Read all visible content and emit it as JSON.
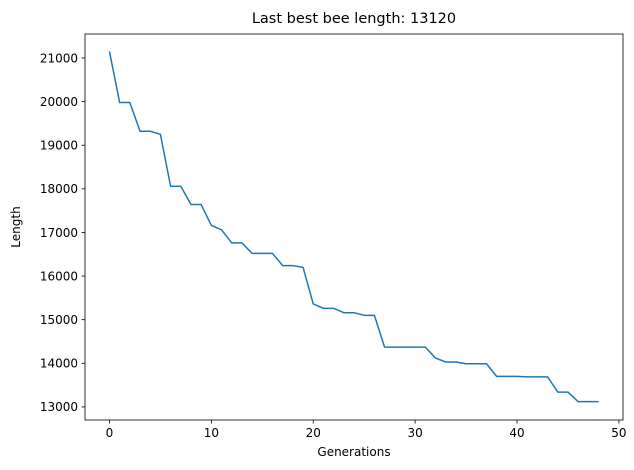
{
  "chart_data": {
    "type": "line",
    "title": "Last best bee length: 13120",
    "xlabel": "Generations",
    "ylabel": "Length",
    "xlim": [
      -2.4,
      50.4
    ],
    "ylim": [
      12700,
      21550
    ],
    "xticks": [
      0,
      10,
      20,
      30,
      40,
      50
    ],
    "yticks": [
      13000,
      14000,
      15000,
      16000,
      17000,
      18000,
      19000,
      20000,
      21000
    ],
    "grid": false,
    "legend": "none",
    "series": [
      {
        "color": "#1f77b4",
        "x": [
          0,
          1,
          2,
          3,
          4,
          5,
          6,
          7,
          8,
          9,
          10,
          11,
          12,
          13,
          14,
          15,
          16,
          17,
          18,
          19,
          20,
          21,
          22,
          23,
          24,
          25,
          26,
          27,
          28,
          29,
          30,
          31,
          32,
          33,
          34,
          35,
          36,
          37,
          38,
          39,
          40,
          41,
          42,
          43,
          44,
          45,
          46,
          47,
          48
        ],
        "values": [
          21150,
          19980,
          19980,
          19320,
          19320,
          19250,
          18060,
          18060,
          17640,
          17640,
          17160,
          17060,
          16760,
          16760,
          16520,
          16520,
          16520,
          16240,
          16240,
          16200,
          15360,
          15260,
          15260,
          15160,
          15160,
          15100,
          15100,
          14370,
          14370,
          14370,
          14370,
          14370,
          14120,
          14030,
          14030,
          13990,
          13990,
          13990,
          13700,
          13700,
          13700,
          13690,
          13690,
          13690,
          13340,
          13340,
          13120,
          13120,
          13120
        ]
      }
    ]
  }
}
